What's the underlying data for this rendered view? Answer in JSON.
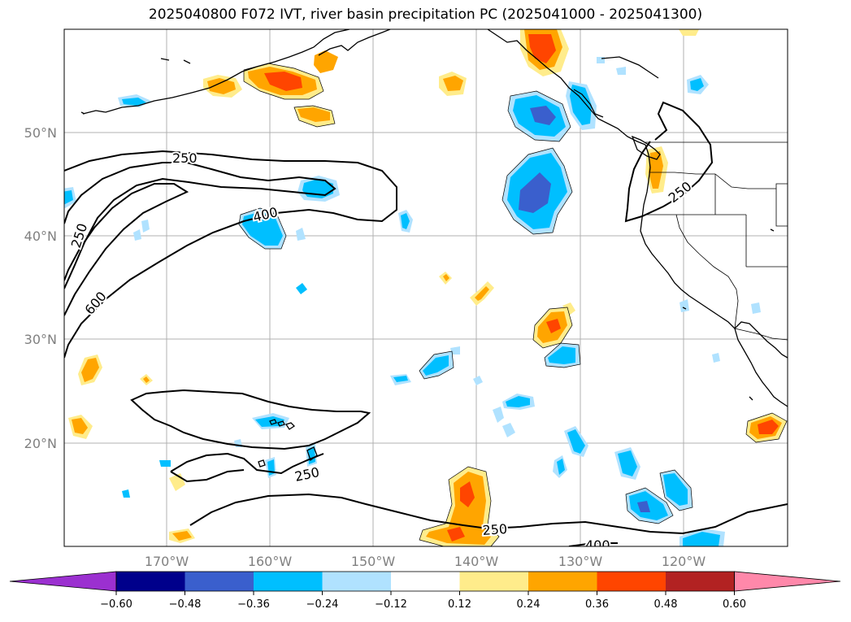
{
  "title": "2025040800 F072 IVT, river basin precipitation PC (2025041000 - 2025041300)",
  "lat_ticks": [
    "50°N",
    "40°N",
    "30°N",
    "20°N"
  ],
  "lon_ticks": [
    "170°W",
    "160°W",
    "150°W",
    "140°W",
    "130°W",
    "120°W"
  ],
  "contour_labels": [
    "250",
    "400",
    "250",
    "600",
    "250",
    "250",
    "250",
    "400"
  ],
  "colorbar": {
    "ticks": [
      "−0.60",
      "−0.48",
      "−0.36",
      "−0.24",
      "−0.12",
      "0.12",
      "0.24",
      "0.36",
      "0.48",
      "0.60"
    ],
    "colors": [
      "#9b30d0",
      "#00008b",
      "#3a5fcd",
      "#00bfff",
      "#b0e2ff",
      "#ffffff",
      "#ffec8b",
      "#ffa500",
      "#ff4500",
      "#b22222",
      "#ff88aa"
    ]
  }
}
